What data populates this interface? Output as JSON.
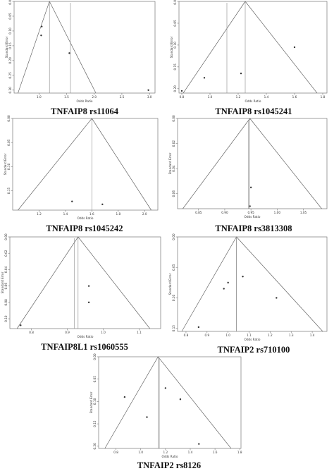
{
  "chart_data": [
    {
      "type": "scatter",
      "caption": "TNFAIP8 rs11064",
      "xlabel": "Odds Ratio",
      "ylabel": "Standard Error",
      "xticks": [
        1.0,
        1.5,
        2.0,
        2.5,
        3.0
      ],
      "xtick_labels": [
        "1.0",
        "1.5",
        "2.0",
        "2.5",
        "3.0"
      ],
      "xlim": [
        0.55,
        3.1
      ],
      "yticks": [
        0.0,
        0.05,
        0.1,
        0.15,
        0.2,
        0.25,
        0.3
      ],
      "ytick_labels": [
        "0.00",
        "0.05",
        "0.10",
        "0.15",
        "0.20",
        "0.25",
        "0.30"
      ],
      "ylim": [
        0.31,
        0.0
      ],
      "summary_x": 1.19,
      "apex": [
        1.19,
        0.0
      ],
      "funnel_base_x": [
        0.62,
        2.03
      ],
      "points": [
        [
          1.05,
          0.085
        ],
        [
          1.04,
          0.115
        ],
        [
          1.55,
          0.175
        ],
        [
          2.98,
          0.3
        ]
      ],
      "extra_lines_x": [
        1.57
      ]
    },
    {
      "type": "scatter",
      "caption": "TNFAIP8 rs1045241",
      "xlabel": "Odds Ratio",
      "ylabel": "Standard Error",
      "xticks": [
        0.8,
        1.0,
        1.2,
        1.4,
        1.6,
        1.8
      ],
      "xtick_labels": [
        "0.8",
        "1.0",
        "1.2",
        "1.4",
        "1.6",
        "1.8"
      ],
      "xlim": [
        0.78,
        1.83
      ],
      "yticks": [
        0.0,
        0.05,
        0.1,
        0.15,
        0.2
      ],
      "ytick_labels": [
        "0.00",
        "0.05",
        "0.10",
        "0.15",
        "0.20"
      ],
      "ylim": [
        0.21,
        0.0
      ],
      "summary_x": 1.25,
      "apex": [
        1.25,
        0.0
      ],
      "funnel_base_x": [
        0.81,
        1.76
      ],
      "points": [
        [
          0.8,
          0.205
        ],
        [
          0.96,
          0.175
        ],
        [
          1.22,
          0.165
        ],
        [
          1.6,
          0.105
        ]
      ],
      "extra_lines_x": [
        1.12
      ]
    },
    {
      "type": "scatter",
      "caption": "TNFAIP8 rs1045242",
      "xlabel": "Odds Ratio",
      "ylabel": "Standard Error",
      "xticks": [
        1.2,
        1.4,
        1.6,
        1.8,
        2.0
      ],
      "xtick_labels": [
        "1.2",
        "1.4",
        "1.6",
        "1.8",
        "2.0"
      ],
      "xlim": [
        1.0,
        2.1
      ],
      "yticks": [
        0.0,
        0.05,
        0.1,
        0.15
      ],
      "ytick_labels": [
        "0.00",
        "0.05",
        "0.10",
        "0.15"
      ],
      "ylim": [
        0.19,
        0.0
      ],
      "summary_x": 1.6,
      "apex": [
        1.6,
        0.0
      ],
      "funnel_base_x": [
        1.04,
        2.05
      ],
      "points": [
        [
          1.45,
          0.172
        ],
        [
          1.68,
          0.178
        ]
      ],
      "extra_lines_x": []
    },
    {
      "type": "scatter",
      "caption": "TNFAIP8 rs3813308",
      "xlabel": "Odds Ratio",
      "ylabel": "Standard Error",
      "xticks": [
        0.85,
        0.9,
        0.95,
        1.0,
        1.05
      ],
      "xtick_labels": [
        "0.85",
        "0.90",
        "0.95",
        "1.00",
        "1.05"
      ],
      "xlim": [
        0.81,
        1.095
      ],
      "yticks": [
        0.0,
        0.02,
        0.04,
        0.06
      ],
      "ytick_labels": [
        "0.00",
        "0.02",
        "0.04",
        "0.06"
      ],
      "ylim": [
        0.072,
        0.0
      ],
      "summary_x": 0.948,
      "apex": [
        0.948,
        0.0
      ],
      "funnel_base_x": [
        0.82,
        1.085
      ],
      "points": [
        [
          0.95,
          0.055
        ],
        [
          0.948,
          0.07
        ]
      ],
      "extra_lines_x": [
        0.945
      ]
    },
    {
      "type": "scatter",
      "caption": "TNFAIP8L1 rs1060555",
      "xlabel": "Odds Ratio",
      "ylabel": "Standard Error",
      "xticks": [
        0.8,
        0.9,
        1.0,
        1.1
      ],
      "xtick_labels": [
        "0.8",
        "0.9",
        "1.0",
        "1.1"
      ],
      "xlim": [
        0.74,
        1.16
      ],
      "yticks": [
        0.0,
        0.02,
        0.04,
        0.06,
        0.08,
        0.1
      ],
      "ytick_labels": [
        "0.00",
        "0.02",
        "0.04",
        "0.06",
        "0.08",
        "0.10"
      ],
      "ylim": [
        0.112,
        0.0
      ],
      "summary_x": 0.93,
      "apex": [
        0.93,
        0.0
      ],
      "funnel_base_x": [
        0.76,
        1.13
      ],
      "points": [
        [
          0.96,
          0.06
        ],
        [
          0.96,
          0.08
        ],
        [
          0.77,
          0.108
        ]
      ],
      "extra_lines_x": [
        0.92
      ]
    },
    {
      "type": "scatter",
      "caption": "TNFAIP2 rs710100",
      "xlabel": "Odds Ratio",
      "ylabel": "Standard Error",
      "xticks": [
        0.8,
        0.9,
        1.0,
        1.1,
        1.2,
        1.3,
        1.4
      ],
      "xtick_labels": [
        "0.8",
        "0.9",
        "1.0",
        "1.1",
        "1.2",
        "1.3",
        "1.4"
      ],
      "xlim": [
        0.76,
        1.47
      ],
      "yticks": [
        0.0,
        0.05,
        0.1,
        0.15
      ],
      "ytick_labels": [
        "0.00",
        "0.05",
        "0.10",
        "0.15"
      ],
      "ylim": [
        0.155,
        0.0
      ],
      "summary_x": 1.04,
      "apex": [
        1.04,
        0.0
      ],
      "funnel_base_x": [
        0.78,
        1.45
      ],
      "points": [
        [
          1.07,
          0.065
        ],
        [
          1.0,
          0.075
        ],
        [
          0.98,
          0.085
        ],
        [
          1.23,
          0.1
        ],
        [
          0.86,
          0.148
        ]
      ],
      "extra_lines_x": [
        1.04
      ]
    },
    {
      "type": "scatter",
      "caption": "TNFAIP2 rs8126",
      "xlabel": "Odds Ratio",
      "ylabel": "Standard Error",
      "xticks": [
        0.8,
        1.0,
        1.2,
        1.4,
        1.6,
        1.8
      ],
      "xtick_labels": [
        "0.8",
        "1.0",
        "1.2",
        "1.4",
        "1.6",
        "1.8"
      ],
      "xlim": [
        0.66,
        1.81
      ],
      "yticks": [
        0.0,
        0.05,
        0.1,
        0.15,
        0.2
      ],
      "ytick_labels": [
        "0.00",
        "0.05",
        "0.10",
        "0.15",
        "0.20"
      ],
      "ylim": [
        0.205,
        0.0
      ],
      "summary_x": 1.14,
      "apex": [
        1.14,
        0.0
      ],
      "funnel_base_x": [
        0.71,
        1.73
      ],
      "points": [
        [
          1.2,
          0.07
        ],
        [
          0.87,
          0.09
        ],
        [
          1.32,
          0.095
        ],
        [
          1.05,
          0.135
        ],
        [
          1.47,
          0.195
        ]
      ],
      "extra_lines_x": [
        1.15
      ]
    }
  ]
}
